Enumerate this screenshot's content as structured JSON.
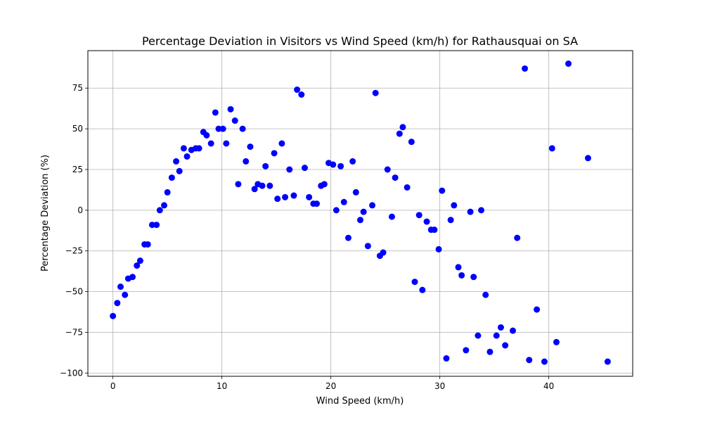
{
  "chart_data": {
    "type": "scatter",
    "title": "Percentage Deviation in Visitors vs Wind Speed (km/h) for Rathausquai on SA",
    "xlabel": "Wind Speed (km/h)",
    "ylabel": "Percentage Deviation (%)",
    "xlim": [
      -2.3,
      47.7
    ],
    "ylim": [
      -102,
      98
    ],
    "xticks": [
      0,
      10,
      20,
      30,
      40
    ],
    "yticks": [
      -100,
      -75,
      -50,
      -25,
      0,
      25,
      50,
      75
    ],
    "grid": true,
    "point_color": "#0000ff",
    "points": [
      [
        0.0,
        -65
      ],
      [
        0.4,
        -57
      ],
      [
        0.7,
        -47
      ],
      [
        1.1,
        -52
      ],
      [
        1.4,
        -42
      ],
      [
        1.8,
        -41
      ],
      [
        2.2,
        -34
      ],
      [
        2.5,
        -31
      ],
      [
        2.9,
        -21
      ],
      [
        3.2,
        -21
      ],
      [
        3.6,
        -9
      ],
      [
        4.0,
        -9
      ],
      [
        4.3,
        0
      ],
      [
        4.7,
        3
      ],
      [
        5.0,
        11
      ],
      [
        5.4,
        20
      ],
      [
        5.8,
        30
      ],
      [
        6.1,
        24
      ],
      [
        6.5,
        38
      ],
      [
        6.8,
        33
      ],
      [
        7.2,
        37
      ],
      [
        7.6,
        38
      ],
      [
        7.9,
        38
      ],
      [
        8.3,
        48
      ],
      [
        8.6,
        46
      ],
      [
        9.0,
        41
      ],
      [
        9.4,
        60
      ],
      [
        9.7,
        50
      ],
      [
        10.1,
        50
      ],
      [
        10.4,
        41
      ],
      [
        10.8,
        62
      ],
      [
        11.2,
        55
      ],
      [
        11.5,
        16
      ],
      [
        11.9,
        50
      ],
      [
        12.2,
        30
      ],
      [
        12.6,
        39
      ],
      [
        13.0,
        13
      ],
      [
        13.3,
        16
      ],
      [
        13.7,
        15
      ],
      [
        14.0,
        27
      ],
      [
        14.4,
        15
      ],
      [
        14.8,
        35
      ],
      [
        15.1,
        7
      ],
      [
        15.5,
        41
      ],
      [
        15.8,
        8
      ],
      [
        16.2,
        25
      ],
      [
        16.6,
        9
      ],
      [
        16.9,
        74
      ],
      [
        17.3,
        71
      ],
      [
        17.6,
        26
      ],
      [
        18.0,
        8
      ],
      [
        18.4,
        4
      ],
      [
        18.7,
        4
      ],
      [
        19.1,
        15
      ],
      [
        19.4,
        16
      ],
      [
        19.8,
        29
      ],
      [
        20.2,
        28
      ],
      [
        20.5,
        0
      ],
      [
        20.9,
        27
      ],
      [
        21.2,
        5
      ],
      [
        21.6,
        -17
      ],
      [
        22.0,
        30
      ],
      [
        22.3,
        11
      ],
      [
        22.7,
        -6
      ],
      [
        23.0,
        -1
      ],
      [
        23.4,
        -22
      ],
      [
        23.8,
        3
      ],
      [
        24.1,
        72
      ],
      [
        24.5,
        -28
      ],
      [
        24.8,
        -26
      ],
      [
        25.2,
        25
      ],
      [
        25.6,
        -4
      ],
      [
        25.9,
        20
      ],
      [
        26.3,
        47
      ],
      [
        26.6,
        51
      ],
      [
        27.0,
        14
      ],
      [
        27.4,
        42
      ],
      [
        27.7,
        -44
      ],
      [
        28.1,
        -3
      ],
      [
        28.4,
        -49
      ],
      [
        28.8,
        -7
      ],
      [
        29.2,
        -12
      ],
      [
        29.5,
        -12
      ],
      [
        29.9,
        -24
      ],
      [
        30.2,
        12
      ],
      [
        30.6,
        -91
      ],
      [
        31.0,
        -6
      ],
      [
        31.3,
        3
      ],
      [
        31.7,
        -35
      ],
      [
        32.0,
        -40
      ],
      [
        32.4,
        -86
      ],
      [
        32.8,
        -1
      ],
      [
        33.1,
        -41
      ],
      [
        33.5,
        -77
      ],
      [
        33.8,
        0
      ],
      [
        34.2,
        -52
      ],
      [
        34.6,
        -87
      ],
      [
        35.2,
        -77
      ],
      [
        35.6,
        -72
      ],
      [
        36.0,
        -83
      ],
      [
        36.7,
        -74
      ],
      [
        37.1,
        -17
      ],
      [
        37.8,
        87
      ],
      [
        38.2,
        -92
      ],
      [
        38.9,
        -61
      ],
      [
        39.6,
        -93
      ],
      [
        40.3,
        38
      ],
      [
        40.7,
        -81
      ],
      [
        41.8,
        90
      ],
      [
        43.6,
        32
      ],
      [
        45.4,
        -93
      ]
    ]
  }
}
